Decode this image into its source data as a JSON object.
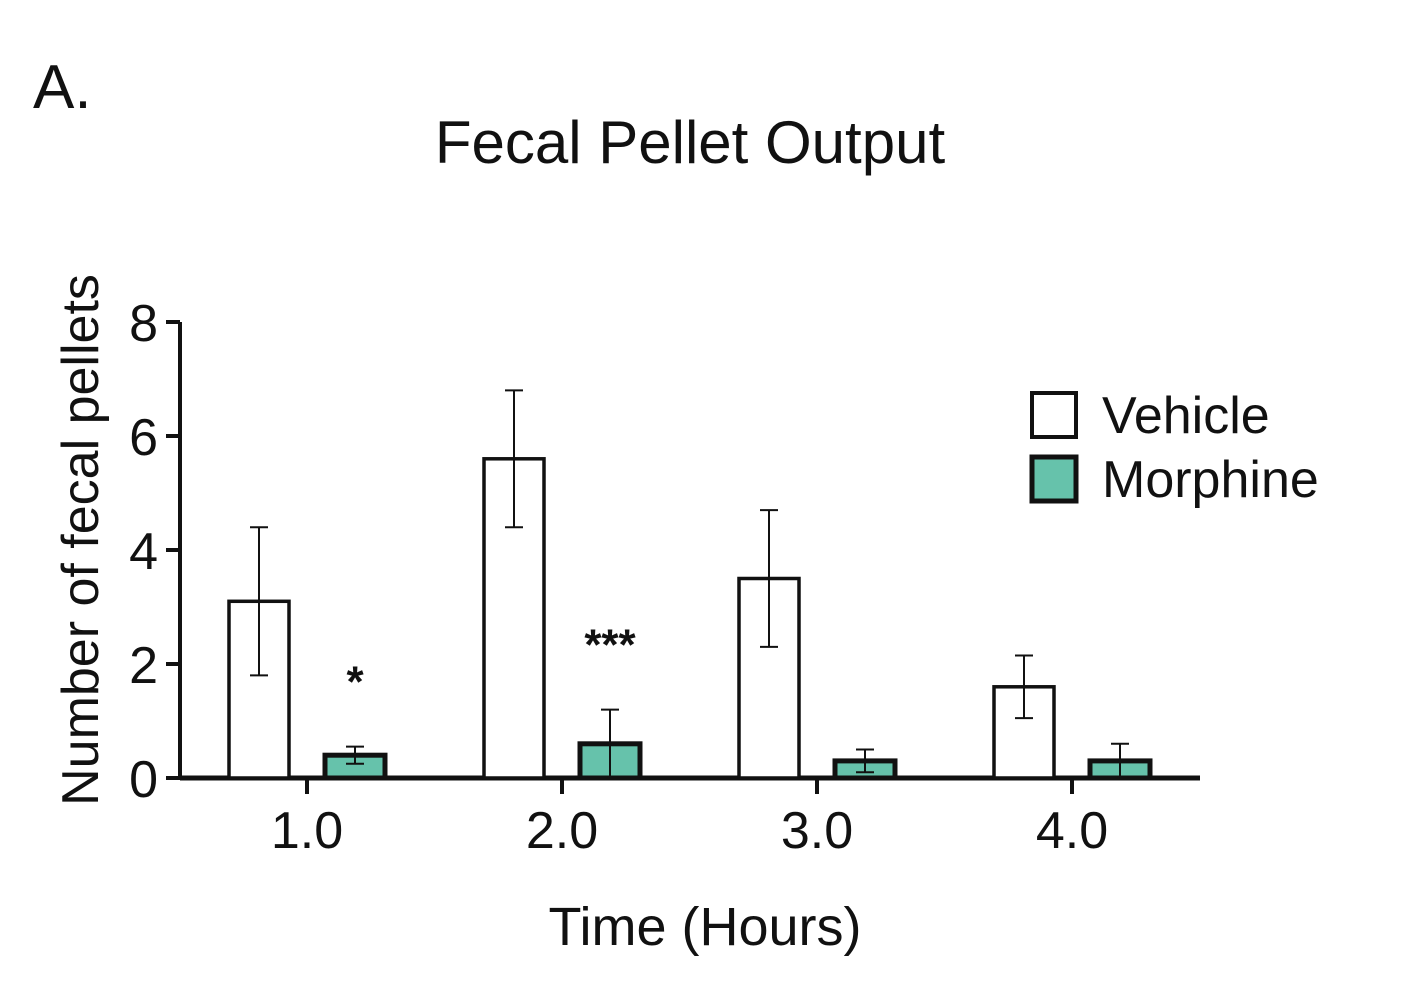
{
  "panel_label": "A.",
  "colors": {
    "vehicle_fill": "#ffffff",
    "morphine_fill": "#66c2ab",
    "stroke": "#111111"
  },
  "chart_data": {
    "type": "bar",
    "title": "Fecal Pellet Output",
    "xlabel": "Time (Hours)",
    "ylabel": "Number of fecal pellets",
    "categories": [
      "1.0",
      "2.0",
      "3.0",
      "4.0"
    ],
    "ylim": [
      0,
      8
    ],
    "yticks": [
      "0",
      "2",
      "4",
      "6",
      "8"
    ],
    "legend_position": "top-right",
    "series": [
      {
        "name": "Vehicle",
        "values": [
          3.1,
          5.6,
          3.5,
          1.6
        ],
        "errors": [
          1.3,
          1.2,
          1.2,
          0.55
        ]
      },
      {
        "name": "Morphine",
        "values": [
          0.4,
          0.6,
          0.3,
          0.3
        ],
        "errors": [
          0.15,
          0.6,
          0.2,
          0.3
        ]
      }
    ],
    "annotations": [
      {
        "category": "1.0",
        "series": "Morphine",
        "text": "*"
      },
      {
        "category": "2.0",
        "series": "Morphine",
        "text": "***"
      }
    ]
  }
}
